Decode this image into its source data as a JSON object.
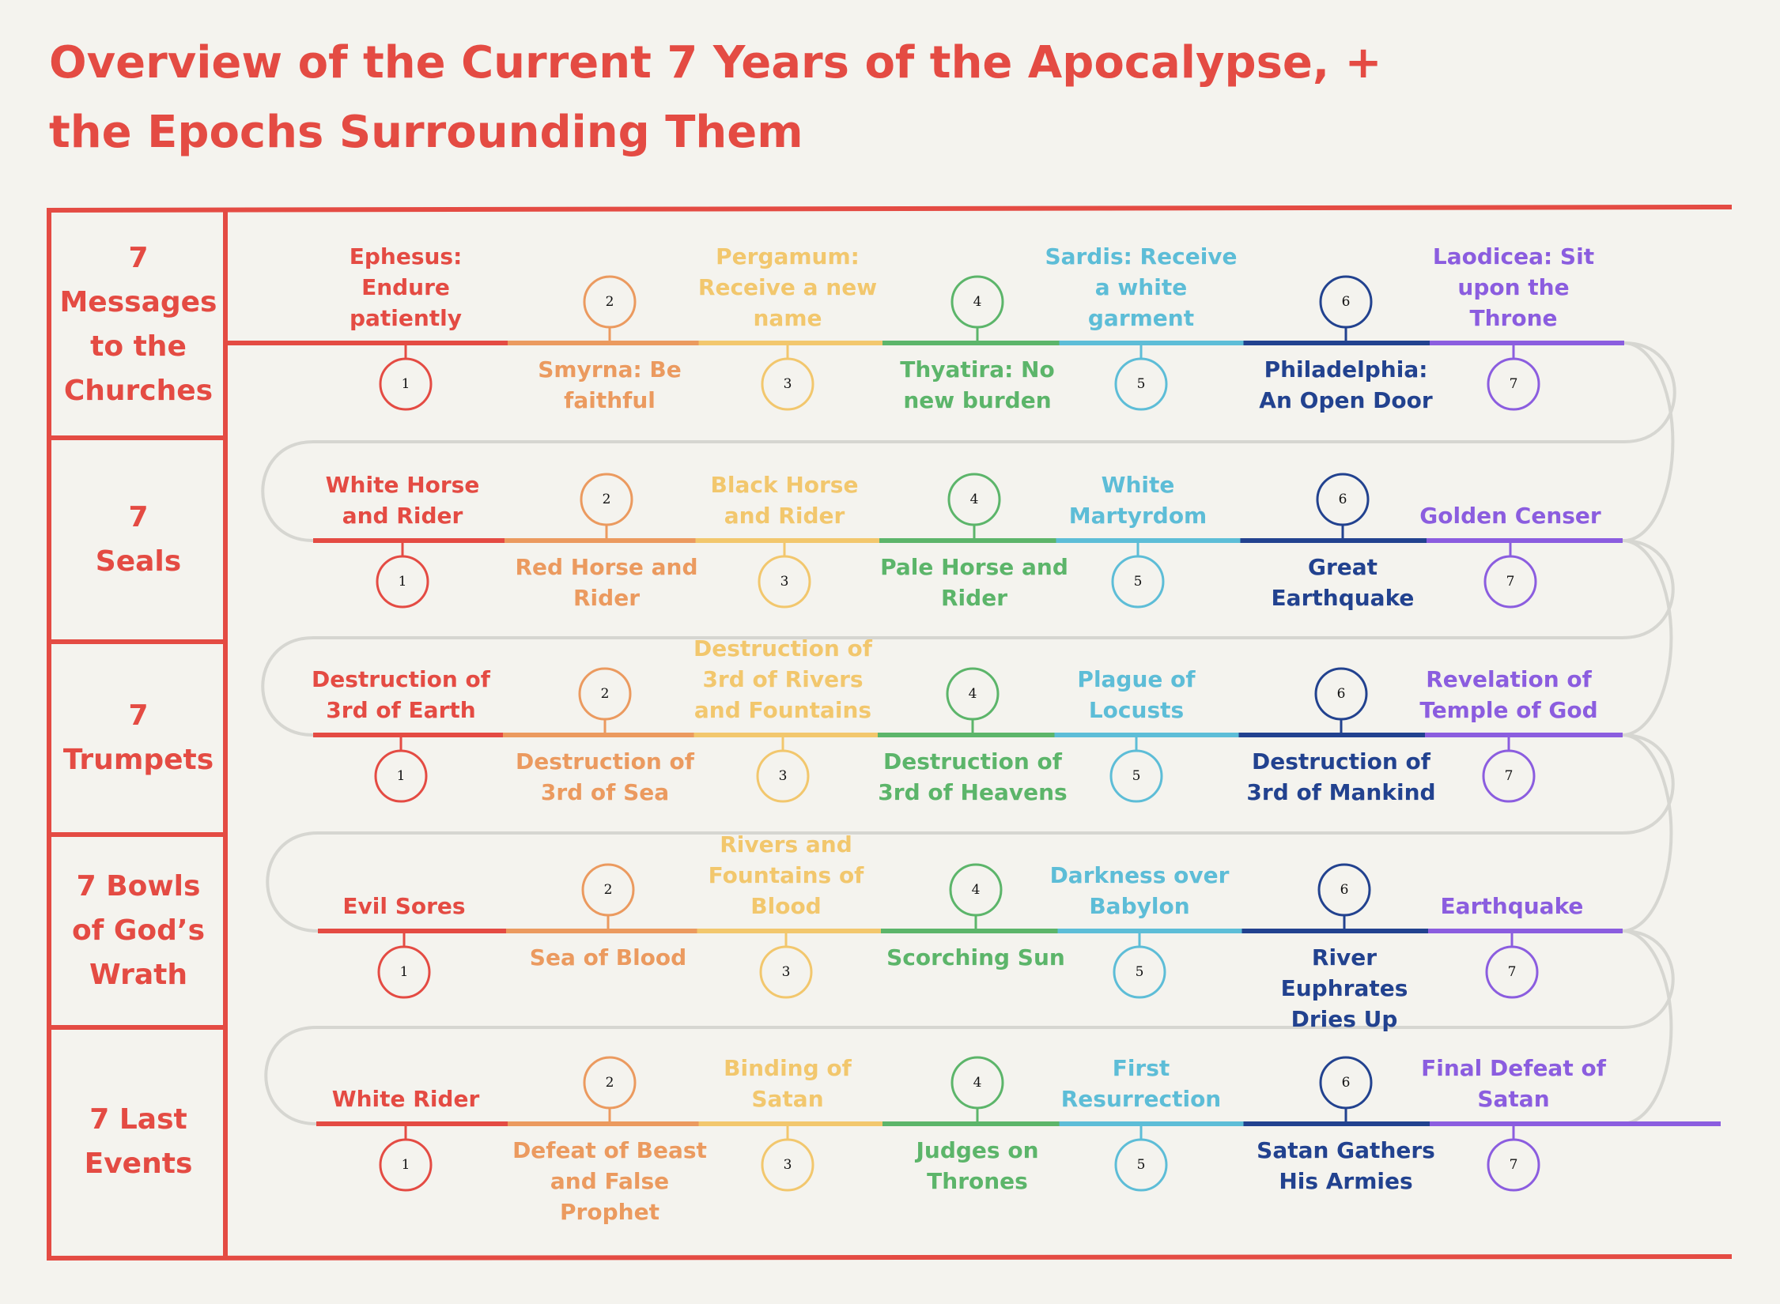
{
  "title": "Overview of the Current 7 Years of the Apocalypse, + the Epochs Surrounding Them",
  "colors": {
    "accent": "#e44b43",
    "connector": "#d6d6d1",
    "background": "#f4f3ee",
    "events": [
      "#e44b43",
      "#eb9a5f",
      "#f2c76d",
      "#5cb56a",
      "#5dbdd7",
      "#22428f",
      "#8b5ddf"
    ]
  },
  "rows": [
    {
      "label": "7\nMessages\nto the\nChurches",
      "events": [
        {
          "number": "1",
          "text": "Ephesus: Endure patiently"
        },
        {
          "number": "2",
          "text": "Smyrna: Be faithful"
        },
        {
          "number": "3",
          "text": "Pergamum: Receive a new name"
        },
        {
          "number": "4",
          "text": "Thyatira: No new burden"
        },
        {
          "number": "5",
          "text": "Sardis: Receive a white garment"
        },
        {
          "number": "6",
          "text": "Philadelphia: An Open Door"
        },
        {
          "number": "7",
          "text": "Laodicea: Sit upon the Throne"
        }
      ]
    },
    {
      "label": "7\nSeals",
      "events": [
        {
          "number": "1",
          "text": "White Horse and Rider"
        },
        {
          "number": "2",
          "text": "Red Horse and Rider"
        },
        {
          "number": "3",
          "text": "Black Horse and Rider"
        },
        {
          "number": "4",
          "text": "Pale Horse and Rider"
        },
        {
          "number": "5",
          "text": "White Martyrdom"
        },
        {
          "number": "6",
          "text": "Great Earthquake"
        },
        {
          "number": "7",
          "text": "Golden Censer"
        }
      ]
    },
    {
      "label": "7\nTrumpets",
      "events": [
        {
          "number": "1",
          "text": "Destruction of 3rd of Earth"
        },
        {
          "number": "2",
          "text": "Destruction of 3rd of Sea"
        },
        {
          "number": "3",
          "text": "Destruction of 3rd of Rivers and Fountains"
        },
        {
          "number": "4",
          "text": "Destruction of 3rd of Heavens"
        },
        {
          "number": "5",
          "text": "Plague of Locusts"
        },
        {
          "number": "6",
          "text": "Destruction of 3rd of Mankind"
        },
        {
          "number": "7",
          "text": "Revelation of Temple of God"
        }
      ]
    },
    {
      "label": "7 Bowls\nof God’s\nWrath",
      "events": [
        {
          "number": "1",
          "text": "Evil Sores"
        },
        {
          "number": "2",
          "text": "Sea of Blood"
        },
        {
          "number": "3",
          "text": "Rivers and Fountains of Blood"
        },
        {
          "number": "4",
          "text": "Scorching Sun"
        },
        {
          "number": "5",
          "text": "Darkness over Babylon"
        },
        {
          "number": "6",
          "text": "River Euphrates Dries Up"
        },
        {
          "number": "7",
          "text": "Earthquake"
        }
      ]
    },
    {
      "label": "7 Last\nEvents",
      "events": [
        {
          "number": "1",
          "text": "White Rider"
        },
        {
          "number": "2",
          "text": "Defeat of Beast and False Prophet"
        },
        {
          "number": "3",
          "text": "Binding of Satan"
        },
        {
          "number": "4",
          "text": "Judges on Thrones"
        },
        {
          "number": "5",
          "text": "First Resurrection"
        },
        {
          "number": "6",
          "text": "Satan Gathers His Armies"
        },
        {
          "number": "7",
          "text": "Final Defeat of Satan"
        }
      ]
    }
  ]
}
